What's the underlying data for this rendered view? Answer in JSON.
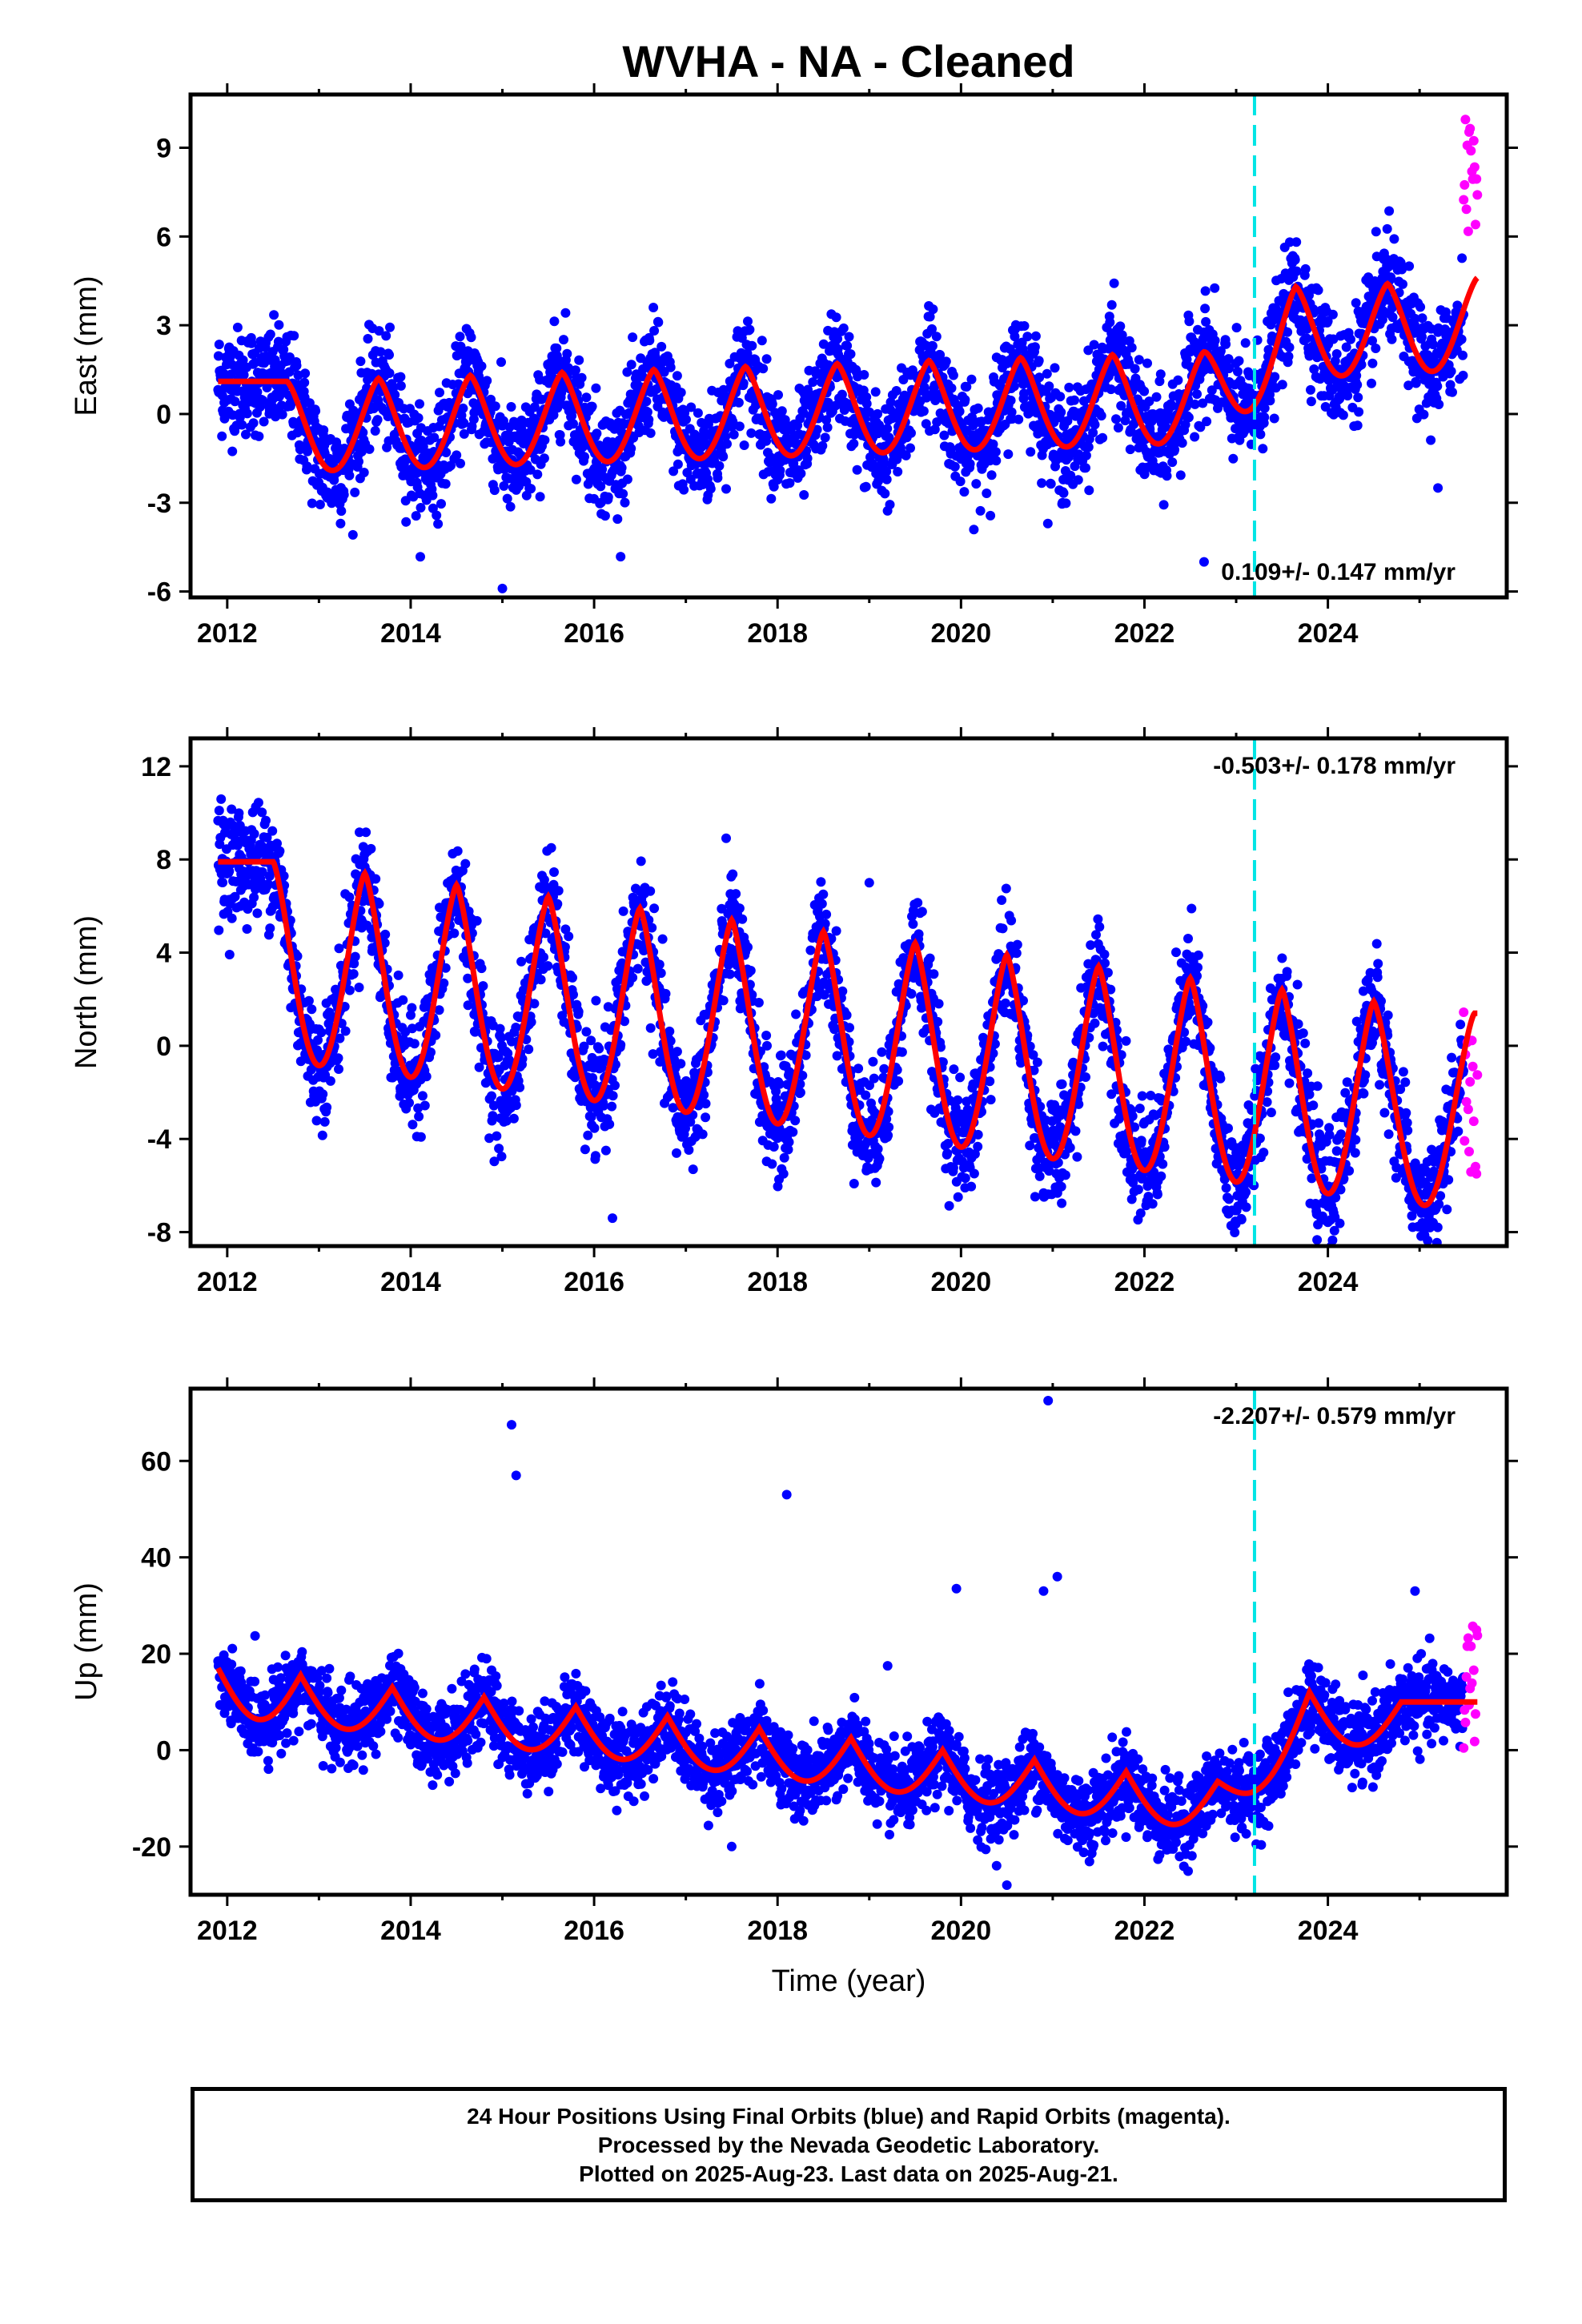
{
  "title": "WVHA  - NA - Cleaned",
  "xlabel": "Time (year)",
  "caption": [
    "24 Hour Positions Using Final Orbits (blue) and Rapid Orbits (magenta).",
    "Processed by the Nevada Geodetic Laboratory.",
    "Plotted on 2025-Aug-23. Last data on 2025-Aug-21."
  ],
  "colors": {
    "final_orbits": "#0000ff",
    "rapid_orbits": "#ff00ff",
    "model_fit": "#ff0000",
    "offset_line": "#00e5e5"
  },
  "chart_data": [
    {
      "type": "scatter",
      "component": "east",
      "ylabel": "East (mm)",
      "xlim": [
        2011.6,
        2025.95
      ],
      "ylim": [
        -6.2,
        10.8
      ],
      "xticks": [
        2012,
        2014,
        2016,
        2018,
        2020,
        2022,
        2024
      ],
      "yticks": [
        -6,
        -3,
        0,
        3,
        6,
        9
      ],
      "rate_text": "0.109+/- 0.147 mm/yr",
      "rate_position": "bottom-right",
      "offset_epoch": 2023.2,
      "series": [
        {
          "name": "Final Orbits (blue)",
          "x_range": [
            2011.9,
            2025.48
          ],
          "seasonal_amplitude": 1.8,
          "noise": 0.9
        },
        {
          "name": "Rapid Orbits (magenta)",
          "x_range": [
            2025.48,
            2025.63
          ],
          "y_range": [
            5.5,
            10.4
          ]
        }
      ],
      "model_peaks": [
        {
          "x": 2012.65,
          "y": 1.1
        },
        {
          "x": 2013.65,
          "y": 1.2
        },
        {
          "x": 2014.65,
          "y": 1.3
        },
        {
          "x": 2015.65,
          "y": 1.4
        },
        {
          "x": 2016.65,
          "y": 1.5
        },
        {
          "x": 2017.65,
          "y": 1.6
        },
        {
          "x": 2018.65,
          "y": 1.7
        },
        {
          "x": 2019.65,
          "y": 1.8
        },
        {
          "x": 2020.65,
          "y": 1.9
        },
        {
          "x": 2021.65,
          "y": 2.0
        },
        {
          "x": 2022.65,
          "y": 2.1
        },
        {
          "x": 2023.65,
          "y": 4.3
        },
        {
          "x": 2024.65,
          "y": 4.4
        },
        {
          "x": 2025.63,
          "y": 4.6
        }
      ],
      "outliers": [
        {
          "x": 2015.0,
          "y": -5.9
        },
        {
          "x": 2022.65,
          "y": -5.0
        },
        {
          "x": 2025.2,
          "y": -2.5
        }
      ]
    },
    {
      "type": "scatter",
      "component": "north",
      "ylabel": "North (mm)",
      "xlim": [
        2011.6,
        2025.95
      ],
      "ylim": [
        -8.6,
        13.2
      ],
      "xticks": [
        2012,
        2014,
        2016,
        2018,
        2020,
        2022,
        2024
      ],
      "yticks": [
        -8,
        -4,
        0,
        4,
        8,
        12
      ],
      "rate_text": "-0.503+/- 0.178 mm/yr",
      "rate_position": "top-right",
      "offset_epoch": 2023.2,
      "series": [
        {
          "name": "Final Orbits (blue)",
          "x_range": [
            2011.9,
            2025.48
          ],
          "seasonal_amplitude": 5.0,
          "noise": 1.2
        },
        {
          "name": "Rapid Orbits (magenta)",
          "x_range": [
            2025.48,
            2025.63
          ],
          "y_range": [
            -5.5,
            1.5
          ]
        }
      ],
      "model_peaks": [
        {
          "x": 2012.5,
          "y": 7.9
        },
        {
          "x": 2013.5,
          "y": 7.4
        },
        {
          "x": 2014.5,
          "y": 6.9
        },
        {
          "x": 2015.5,
          "y": 6.4
        },
        {
          "x": 2016.5,
          "y": 5.9
        },
        {
          "x": 2017.5,
          "y": 5.4
        },
        {
          "x": 2018.5,
          "y": 4.9
        },
        {
          "x": 2019.5,
          "y": 4.4
        },
        {
          "x": 2020.5,
          "y": 3.9
        },
        {
          "x": 2021.5,
          "y": 3.4
        },
        {
          "x": 2022.5,
          "y": 2.9
        },
        {
          "x": 2023.5,
          "y": 2.4
        },
        {
          "x": 2024.5,
          "y": 1.9
        },
        {
          "x": 2025.6,
          "y": 1.4
        }
      ],
      "outliers": [
        {
          "x": 2016.2,
          "y": -7.4
        },
        {
          "x": 2019.0,
          "y": 7.0
        }
      ]
    },
    {
      "type": "scatter",
      "component": "up",
      "ylabel": "Up (mm)",
      "xlim": [
        2011.6,
        2025.95
      ],
      "ylim": [
        -30,
        75
      ],
      "xticks": [
        2012,
        2014,
        2016,
        2018,
        2020,
        2022,
        2024
      ],
      "yticks": [
        -20,
        0,
        20,
        40,
        60
      ],
      "rate_text": "-2.207+/- 0.579 mm/yr",
      "rate_position": "top-right",
      "offset_epoch": 2023.2,
      "series": [
        {
          "name": "Final Orbits (blue)",
          "x_range": [
            2011.9,
            2025.48
          ],
          "seasonal_amplitude": 5.5,
          "noise": 4.0
        },
        {
          "name": "Rapid Orbits (magenta)",
          "x_range": [
            2025.48,
            2025.63
          ],
          "y_range": [
            0,
            26
          ]
        }
      ],
      "model_peaks": [
        {
          "x": 2011.9,
          "y": 17
        },
        {
          "x": 2012.8,
          "y": 15.5
        },
        {
          "x": 2013.8,
          "y": 13
        },
        {
          "x": 2014.8,
          "y": 11
        },
        {
          "x": 2015.8,
          "y": 9
        },
        {
          "x": 2016.8,
          "y": 7
        },
        {
          "x": 2017.8,
          "y": 4.5
        },
        {
          "x": 2018.8,
          "y": 2.5
        },
        {
          "x": 2019.8,
          "y": 0
        },
        {
          "x": 2020.8,
          "y": -2
        },
        {
          "x": 2021.8,
          "y": -4.5
        },
        {
          "x": 2022.8,
          "y": -6.5
        },
        {
          "x": 2023.8,
          "y": 12
        },
        {
          "x": 2024.8,
          "y": 10
        }
      ],
      "outliers": [
        {
          "x": 2015.1,
          "y": 67.5
        },
        {
          "x": 2015.15,
          "y": 57
        },
        {
          "x": 2018.1,
          "y": 53
        },
        {
          "x": 2019.95,
          "y": 33.5
        },
        {
          "x": 2020.95,
          "y": 72.5
        },
        {
          "x": 2021.05,
          "y": 36
        },
        {
          "x": 2020.9,
          "y": 33
        },
        {
          "x": 2019.2,
          "y": 17.5
        },
        {
          "x": 2017.5,
          "y": -20
        },
        {
          "x": 2020.5,
          "y": -28
        },
        {
          "x": 2024.95,
          "y": 33
        }
      ]
    }
  ]
}
